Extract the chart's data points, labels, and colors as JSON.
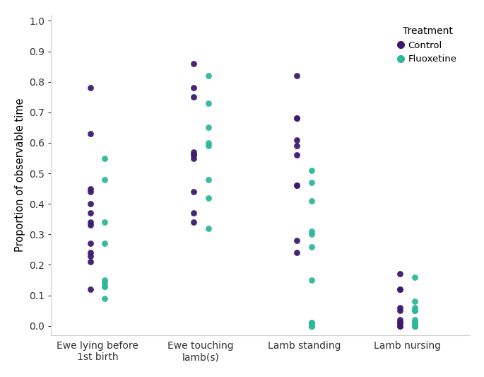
{
  "categories": [
    "Ewe lying before\n1st birth",
    "Ewe touching\nlamb(s)",
    "Lamb standing",
    "Lamb nursing"
  ],
  "control_color": "#3d1a6e",
  "fluoxetine_color": "#2db899",
  "ylabel": "Proportion of observable time",
  "legend_title": "Treatment",
  "legend_labels": [
    "Control",
    "Fluoxetine"
  ],
  "ylim": [
    -0.03,
    1.02
  ],
  "yticks": [
    0.0,
    0.1,
    0.2,
    0.3,
    0.4,
    0.5,
    0.6,
    0.7,
    0.8,
    0.9,
    1.0
  ],
  "control_data": {
    "cat0": [
      0.78,
      0.63,
      0.45,
      0.44,
      0.4,
      0.37,
      0.34,
      0.33,
      0.27,
      0.24,
      0.23,
      0.21,
      0.12
    ],
    "cat1": [
      0.86,
      0.78,
      0.75,
      0.57,
      0.56,
      0.56,
      0.55,
      0.44,
      0.37,
      0.34
    ],
    "cat2": [
      0.82,
      0.68,
      0.68,
      0.61,
      0.59,
      0.56,
      0.46,
      0.46,
      0.28,
      0.24
    ],
    "cat3": [
      0.17,
      0.12,
      0.12,
      0.06,
      0.05,
      0.02,
      0.01,
      0.01,
      0.01,
      0.0,
      0.0
    ]
  },
  "fluoxetine_data": {
    "cat0": [
      0.55,
      0.48,
      0.34,
      0.27,
      0.15,
      0.14,
      0.13,
      0.13,
      0.09
    ],
    "cat1": [
      0.82,
      0.73,
      0.65,
      0.6,
      0.59,
      0.48,
      0.42,
      0.32
    ],
    "cat2": [
      0.51,
      0.47,
      0.41,
      0.31,
      0.3,
      0.26,
      0.15,
      0.01,
      0.01,
      0.0,
      0.0,
      0.0,
      0.0,
      0.0
    ],
    "cat3": [
      0.16,
      0.08,
      0.06,
      0.05,
      0.05,
      0.02,
      0.01,
      0.01,
      0.01,
      0.0,
      0.0,
      0.0,
      0.0,
      0.0,
      0.0
    ]
  },
  "marker_size": 40,
  "alpha": 0.95,
  "background_color": "#ffffff",
  "x_positions": [
    1,
    2,
    3,
    4
  ],
  "jitter_control": -0.07,
  "jitter_fluoxetine": 0.07,
  "figsize": [
    6.85,
    5.33
  ],
  "dpi": 100
}
